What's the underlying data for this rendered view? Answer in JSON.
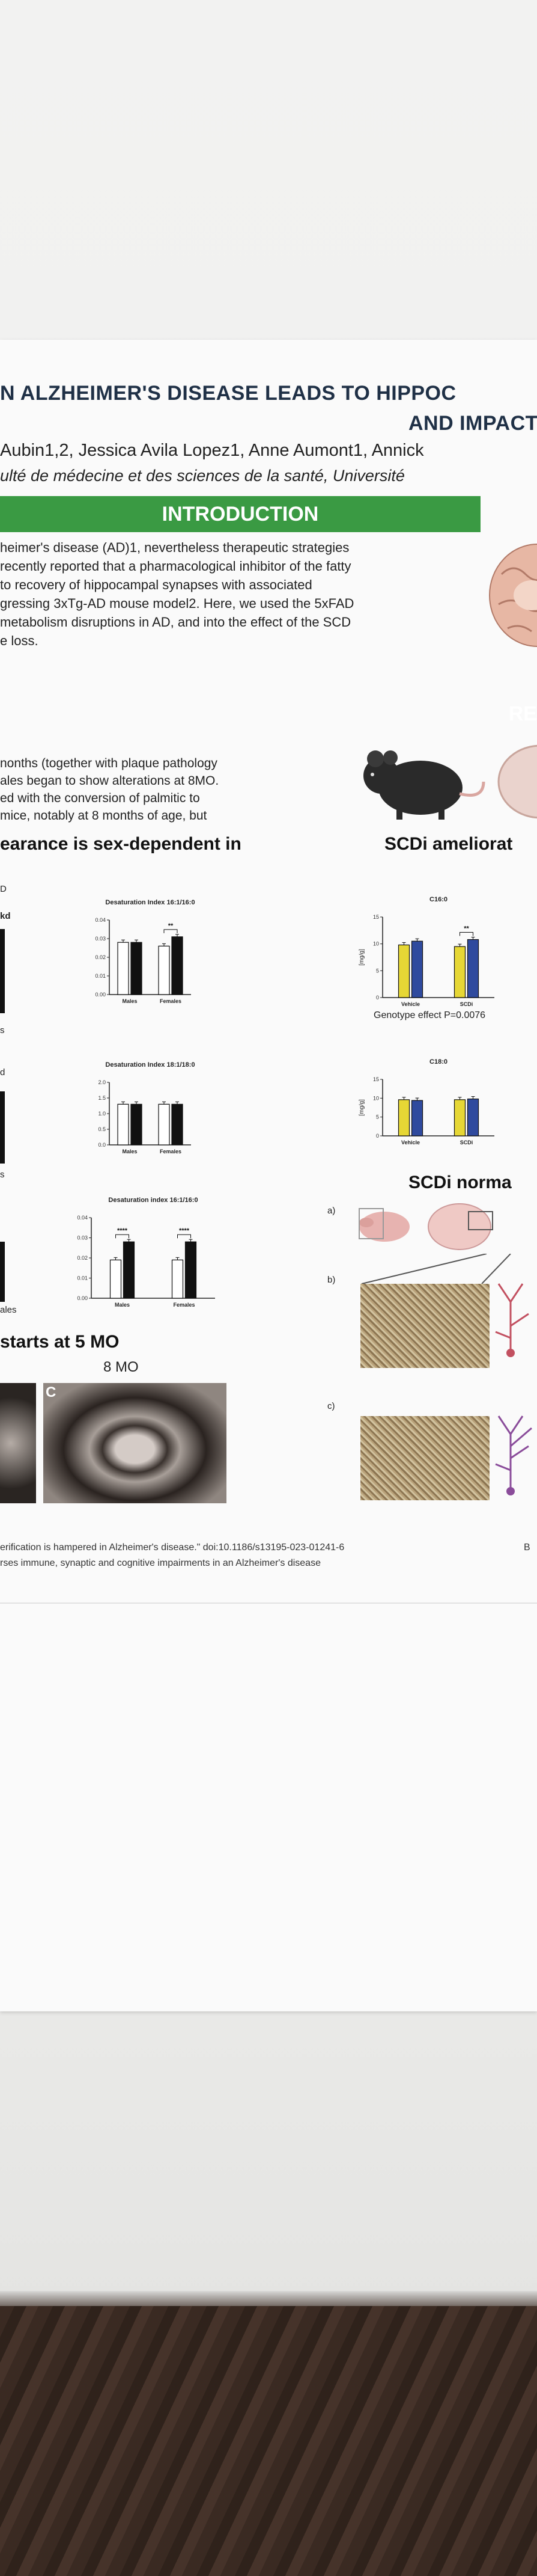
{
  "poster": {
    "title_line1": "N ALZHEIMER'S DISEASE LEADS TO HIPPOC",
    "title_line2": "AND IMPACT",
    "authors": "Aubin1,2, Jessica Avila Lopez1, Anne Aumont1, Annick",
    "affiliation": "ulté de médecine et des sciences de la santé, Université",
    "intro_header": "INTRODUCTION",
    "intro_lines": [
      "heimer's disease (AD)1, nevertheless therapeutic strategies",
      "recently reported that a pharmacological inhibitor of the fatty",
      "to recovery of hippocampal synapses with associated",
      "gressing 3xTg-AD mouse model2. Here, we used the 5xFAD",
      "metabolism disruptions in AD, and into the effect of the SCD",
      "e loss."
    ],
    "results_header": "RE",
    "left_lines": [
      "nonths (together with plaque pathology",
      "ales began to show alterations at 8MO.",
      "ed with the conversion of palmitic to",
      "mice, notably at 8 months of age, but"
    ],
    "left_subhead": "earance is sex-dependent in",
    "right_subhead1": "SCDi ameliorat",
    "right_subhead2": "SCDi norma",
    "bottom_left_subhead": "starts at 5 MO",
    "months_label": "8 MO",
    "panel_letter_c": "C",
    "fragment_labels": [
      "D",
      "kd",
      "s",
      "d",
      "s",
      "ales"
    ],
    "panel_labels": [
      "a)",
      "b)",
      "c)"
    ],
    "genotype_effect": "Genotype effect P=0.0076",
    "references": [
      "erification is hampered in Alzheimer's disease.\" doi:10.1186/s13195-023-01241-6",
      "rses immune, synaptic and cognitive impairments in an Alzheimer's disease"
    ],
    "ref_fragment": "B"
  },
  "chart_data": [
    {
      "type": "bar",
      "title": "Desaturation Index 16:1/16:0",
      "categories": [
        "Males",
        "Females"
      ],
      "series": [
        {
          "values": [
            0.028,
            0.026
          ]
        },
        {
          "values": [
            0.028,
            0.031
          ]
        }
      ],
      "ylim": [
        0,
        0.04
      ],
      "yticks": [
        "0.00",
        "0.01",
        "0.02",
        "0.03",
        "0.04"
      ],
      "annotations": [
        "**"
      ]
    },
    {
      "type": "bar",
      "title": "Desaturation Index 18:1/18:0",
      "categories": [
        "Males",
        "Females"
      ],
      "series": [
        {
          "values": [
            1.3,
            1.3
          ]
        },
        {
          "values": [
            1.3,
            1.3
          ]
        }
      ],
      "ylim": [
        0,
        2.0
      ],
      "yticks": [
        "0.0",
        "0.5",
        "1.0",
        "1.5",
        "2.0"
      ],
      "annotations": []
    },
    {
      "type": "bar",
      "title": "Desaturation index 16:1/16:0",
      "categories": [
        "Males",
        "Females"
      ],
      "series": [
        {
          "values": [
            0.019,
            0.019
          ]
        },
        {
          "values": [
            0.028,
            0.028
          ]
        }
      ],
      "ylim": [
        0,
        0.04
      ],
      "yticks": [
        "0.00",
        "0.01",
        "0.02",
        "0.03",
        "0.04"
      ],
      "annotations": [
        "****",
        "****"
      ]
    },
    {
      "type": "bar",
      "title": "C16:0",
      "ylabel": "[mg/g]",
      "categories": [
        "Vehicle",
        "SCDi"
      ],
      "series": [
        {
          "values": [
            9.8,
            9.5
          ]
        },
        {
          "values": [
            10.5,
            10.8
          ]
        }
      ],
      "ylim": [
        0,
        15
      ],
      "yticks": [
        "0",
        "5",
        "10",
        "15"
      ],
      "annotations": [
        "**"
      ],
      "colors": [
        "#e6d735",
        "#2f4a9e"
      ]
    },
    {
      "type": "bar",
      "title": "C18:0",
      "ylabel": "[mg/g]",
      "categories": [
        "Vehicle",
        "SCDi"
      ],
      "series": [
        {
          "values": [
            9.6,
            9.6
          ]
        },
        {
          "values": [
            9.4,
            9.8
          ]
        }
      ],
      "ylim": [
        0,
        15
      ],
      "yticks": [
        "0",
        "5",
        "10",
        "15"
      ],
      "annotations": [],
      "colors": [
        "#e6d735",
        "#2f4a9e"
      ]
    }
  ]
}
